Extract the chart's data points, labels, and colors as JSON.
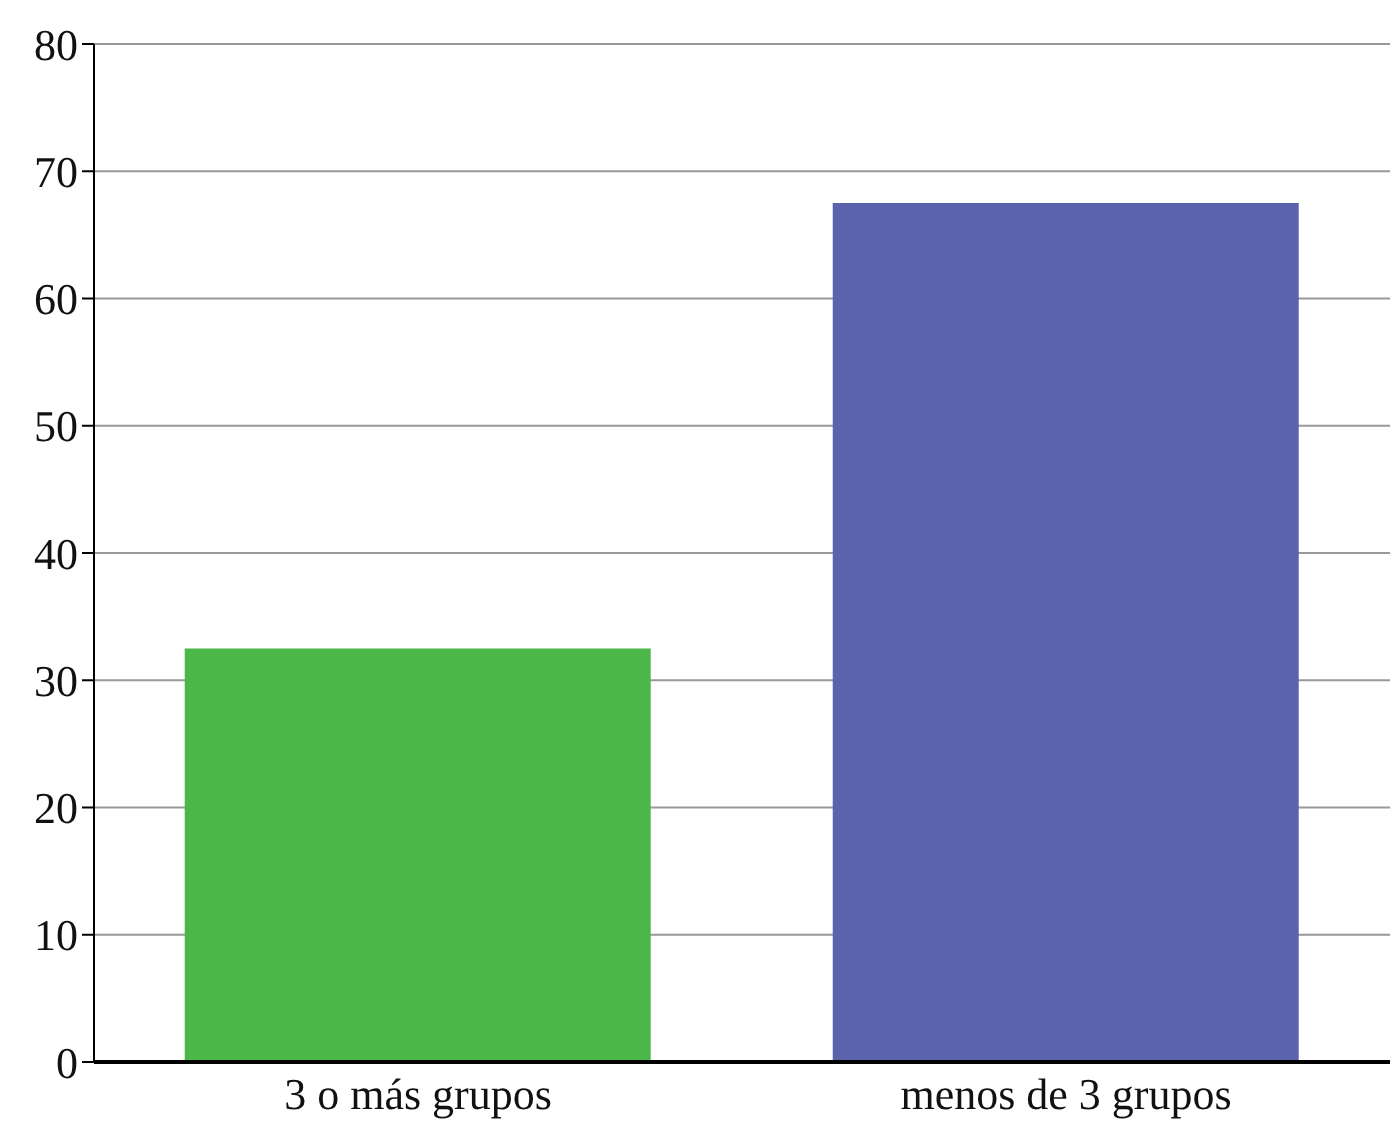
{
  "chart_data": {
    "type": "bar",
    "categories": [
      "3 o más grupos",
      "menos de 3 grupos"
    ],
    "values": [
      32.5,
      67.5
    ],
    "colors": [
      "#4ab748",
      "#5c63ad"
    ],
    "ylim": [
      0,
      80
    ],
    "yticks": [
      0,
      10,
      20,
      30,
      40,
      50,
      60,
      70,
      80
    ],
    "grid": "y"
  }
}
